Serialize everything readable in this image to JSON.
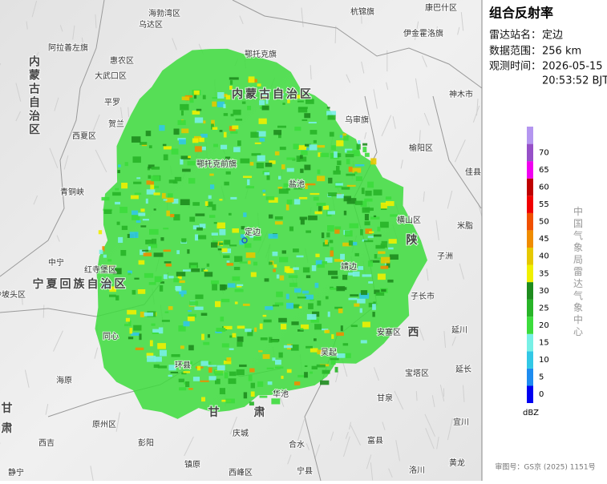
{
  "panel": {
    "title": "组合反射率",
    "station_label": "雷达站名：",
    "station": "定边",
    "range_label": "数据范围：",
    "range": "256 km",
    "time_label": "观测时间：",
    "date": "2026-05-15",
    "time": "20:53:52 BJT",
    "agency": "中国气象局雷达气象中心",
    "approval": "审图号：GS京 (2025) 1151号"
  },
  "legend": {
    "unit": "dBZ",
    "levels": [
      0,
      5,
      10,
      15,
      20,
      25,
      30,
      35,
      40,
      45,
      50,
      55,
      60,
      65,
      70
    ],
    "colors": [
      "#0000f0",
      "#1e8cf0",
      "#32c8e6",
      "#78f0e6",
      "#3cdc3c",
      "#28b428",
      "#1e8c1e",
      "#f0f000",
      "#e6c800",
      "#f08c00",
      "#f05000",
      "#f00000",
      "#be0000",
      "#f000f0",
      "#9650c8",
      "#b496f0"
    ]
  },
  "map": {
    "regions": [
      "内蒙古自治区",
      "内蒙古自治区",
      "宁夏回族自治区",
      "陕",
      "西",
      "甘",
      "肃",
      "甘",
      "肃"
    ],
    "places": [
      "海勃湾区",
      "乌达区",
      "杭锦旗",
      "康巴什区",
      "伊金霍洛旗",
      "阿拉善左旗",
      "鄂托克旗",
      "惠农区",
      "大武口区",
      "神木市",
      "平罗",
      "乌审旗",
      "贺兰",
      "西夏区",
      "榆阳区",
      "鄂托克前旗",
      "佳县",
      "青铜峡",
      "横山区",
      "米脂",
      "子洲",
      "中宁",
      "红寺堡区",
      "靖边",
      "沙坡头区",
      "子长市",
      "同心",
      "安塞区",
      "延川",
      "吴起",
      "宝塔区",
      "延长",
      "海原",
      "环县",
      "甘泉",
      "华池",
      "宜川",
      "西吉",
      "原州区",
      "彭阳",
      "庆城",
      "合水",
      "富县",
      "镇原",
      "西峰区",
      "宁县",
      "洛川",
      "黄龙",
      "静宁",
      "盐池",
      "定边"
    ]
  }
}
